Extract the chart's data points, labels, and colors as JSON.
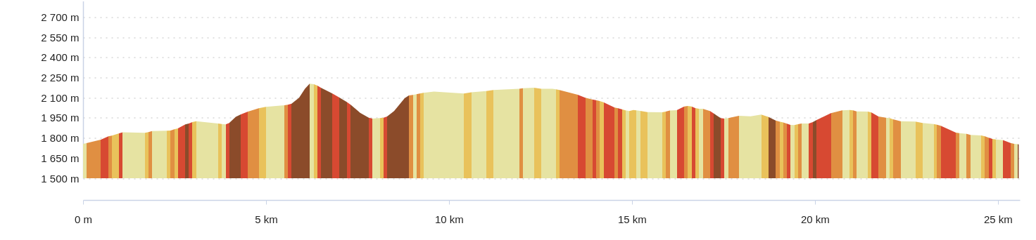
{
  "chart_data": {
    "type": "area",
    "x": [
      0,
      0.09,
      0.487,
      0.692,
      0.788,
      0.987,
      1.083,
      1.692,
      1.788,
      1.885,
      2.295,
      2.391,
      2.494,
      2.59,
      2.795,
      2.891,
      2.987,
      3.09,
      3.69,
      3.795,
      3.897,
      3.994,
      4.173,
      4.301,
      4.494,
      4.801,
      4.994,
      5.5,
      5.596,
      5.699,
      5.904,
      6.064,
      6.192,
      6.308,
      6.404,
      6.5,
      6.814,
      7.006,
      7.205,
      7.314,
      7.571,
      7.808,
      7.91,
      8.109,
      8.212,
      8.308,
      8.5,
      8.788,
      8.904,
      9.013,
      9.109,
      9.205,
      9.301,
      9.59,
      10.41,
      10.615,
      11.019,
      11.212,
      11.917,
      12.019,
      12.32,
      12.519,
      12.827,
      12.923,
      13.019,
      13.519,
      13.724,
      13.917,
      14.019,
      14.122,
      14.224,
      14.526,
      14.622,
      14.724,
      14.827,
      14.929,
      15.04,
      15.122,
      15.224,
      15.423,
      15.827,
      15.923,
      16.032,
      16.224,
      16.429,
      16.526,
      16.628,
      16.731,
      16.833,
      16.936,
      17.135,
      17.231,
      17.423,
      17.526,
      17.635,
      17.923,
      18.244,
      18.532,
      18.724,
      18.929,
      19.032,
      19.135,
      19.237,
      19.333,
      19.436,
      19.538,
      19.635,
      19.833,
      19.942,
      20.038,
      20.436,
      20.744,
      20.949,
      21.045,
      21.141,
      21.449,
      21.545,
      21.737,
      21.942,
      22.038,
      22.135,
      22.34,
      22.744,
      22.942,
      23.244,
      23.34,
      23.442,
      23.853,
      23.949,
      24.147,
      24.25,
      24.545,
      24.647,
      24.75,
      24.853,
      24.949,
      25.147,
      25.346,
      25.449,
      25.551,
      25.571
    ],
    "values": [
      1756,
      1762,
      1788,
      1812,
      1817,
      1835,
      1842,
      1838,
      1844,
      1852,
      1854,
      1856,
      1864,
      1871,
      1901,
      1908,
      1918,
      1925,
      1908,
      1904,
      1901,
      1912,
      1957,
      1974,
      1995,
      2021,
      2032,
      2044,
      2048,
      2056,
      2100,
      2166,
      2204,
      2201,
      2190,
      2175,
      2131,
      2101,
      2068,
      2048,
      1988,
      1951,
      1945,
      1948,
      1951,
      1960,
      2000,
      2096,
      2117,
      2121,
      2126,
      2131,
      2136,
      2145,
      2131,
      2140,
      2149,
      2157,
      2166,
      2171,
      2175,
      2166,
      2166,
      2163,
      2157,
      2122,
      2100,
      2087,
      2082,
      2075,
      2066,
      2027,
      2021,
      2013,
      2006,
      2000,
      2009,
      2006,
      2002,
      1993,
      1992,
      1997,
      2004,
      2007,
      2035,
      2039,
      2035,
      2023,
      2018,
      2018,
      2000,
      1983,
      1948,
      1945,
      1948,
      1965,
      1962,
      1974,
      1957,
      1930,
      1922,
      1915,
      1906,
      1897,
      1896,
      1903,
      1908,
      1908,
      1918,
      1933,
      1985,
      2006,
      2009,
      2006,
      1998,
      1997,
      1990,
      1960,
      1951,
      1948,
      1939,
      1925,
      1922,
      1912,
      1904,
      1899,
      1891,
      1840,
      1836,
      1831,
      1823,
      1819,
      1812,
      1802,
      1793,
      1789,
      1784,
      1763,
      1756,
      1753,
      1751
    ],
    "colors": [
      "#e6e3a2",
      "#e08f42",
      "#d74932",
      "#e08f42",
      "#e9c25b",
      "#d74932",
      "#e6e3a2",
      "#e9c25b",
      "#e08f42",
      "#e6e3a2",
      "#e9c25b",
      "#e08f42",
      "#e9c25b",
      "#d74932",
      "#8b4b2a",
      "#d74932",
      "#e9c25b",
      "#e6e3a2",
      "#e9c25b",
      "#e6e3a2",
      "#d74932",
      "#8b4b2a",
      "#8b4b2a",
      "#d74932",
      "#e08f42",
      "#e9c25b",
      "#e6e3a2",
      "#e08f42",
      "#d74932",
      "#8b4b2a",
      "#8b4b2a",
      "#8b4b2a",
      "#e6e3a2",
      "#e9c25b",
      "#d74932",
      "#8b4b2a",
      "#d74932",
      "#8b4b2a",
      "#d74932",
      "#8b4b2a",
      "#8b4b2a",
      "#d74932",
      "#e6e3a2",
      "#e9c25b",
      "#d74932",
      "#8b4b2a",
      "#8b4b2a",
      "#8b4b2a",
      "#e08f42",
      "#e6e3a2",
      "#e08f42",
      "#e9c25b",
      "#e6e3a2",
      "#e6e3a2",
      "#e9c25b",
      "#e6e3a2",
      "#e9c25b",
      "#e6e3a2",
      "#e08f42",
      "#e6e3a2",
      "#e9c25b",
      "#e6e3a2",
      "#e6e3a2",
      "#e9c25b",
      "#e08f42",
      "#d74932",
      "#e08f42",
      "#d74932",
      "#e08f42",
      "#e9c25b",
      "#d74932",
      "#e08f42",
      "#d74932",
      "#e9c25b",
      "#e6e3a2",
      "#e9c25b",
      "#e9c25b",
      "#e6e3a2",
      "#e9c25b",
      "#e6e3a2",
      "#e9c25b",
      "#e08f42",
      "#e6e3a2",
      "#d74932",
      "#e08f42",
      "#e9c25b",
      "#d74932",
      "#e9c25b",
      "#e6e3a2",
      "#e08f42",
      "#d74932",
      "#8b4b2a",
      "#d74932",
      "#e6e3a2",
      "#e08f42",
      "#e6e3a2",
      "#e6e3a2",
      "#e9c25b",
      "#8b4b2a",
      "#e08f42",
      "#e9c25b",
      "#e08f42",
      "#d74932",
      "#e6e3a2",
      "#e9c25b",
      "#e08f42",
      "#e6e3a2",
      "#d74932",
      "#8b4b2a",
      "#d74932",
      "#e08f42",
      "#e6e3a2",
      "#e9c25b",
      "#e08f42",
      "#e6e3a2",
      "#e9c25b",
      "#d74932",
      "#e08f42",
      "#e6e3a2",
      "#e9c25b",
      "#e08f42",
      "#e6e3a2",
      "#e9c25b",
      "#e6e3a2",
      "#e9c25b",
      "#e08f42",
      "#d74932",
      "#e08f42",
      "#e6e3a2",
      "#e08f42",
      "#e6e3a2",
      "#e9c25b",
      "#e08f42",
      "#d74932",
      "#e9c25b",
      "#e6e3a2",
      "#d74932",
      "#e08f42",
      "#e6e3a2",
      "#8b4b2a",
      "#8b4b2a"
    ],
    "xlim": [
      0,
      25.6
    ],
    "ylim": [
      1500,
      2820
    ],
    "xticks": [
      {
        "value": 0,
        "label": "0 m"
      },
      {
        "value": 5,
        "label": "5 km"
      },
      {
        "value": 10,
        "label": "10 km"
      },
      {
        "value": 15,
        "label": "15 km"
      },
      {
        "value": 20,
        "label": "20 km"
      },
      {
        "value": 25,
        "label": "25 km"
      }
    ],
    "yticks": [
      {
        "value": 1500,
        "label": "1 500 m"
      },
      {
        "value": 1650,
        "label": "1 650 m"
      },
      {
        "value": 1800,
        "label": "1 800 m"
      },
      {
        "value": 1950,
        "label": "1 950 m"
      },
      {
        "value": 2100,
        "label": "2 100 m"
      },
      {
        "value": 2250,
        "label": "2 250 m"
      },
      {
        "value": 2400,
        "label": "2 400 m"
      },
      {
        "value": 2550,
        "label": "2 550 m"
      },
      {
        "value": 2700,
        "label": "2 700 m"
      }
    ],
    "grid": "y"
  }
}
